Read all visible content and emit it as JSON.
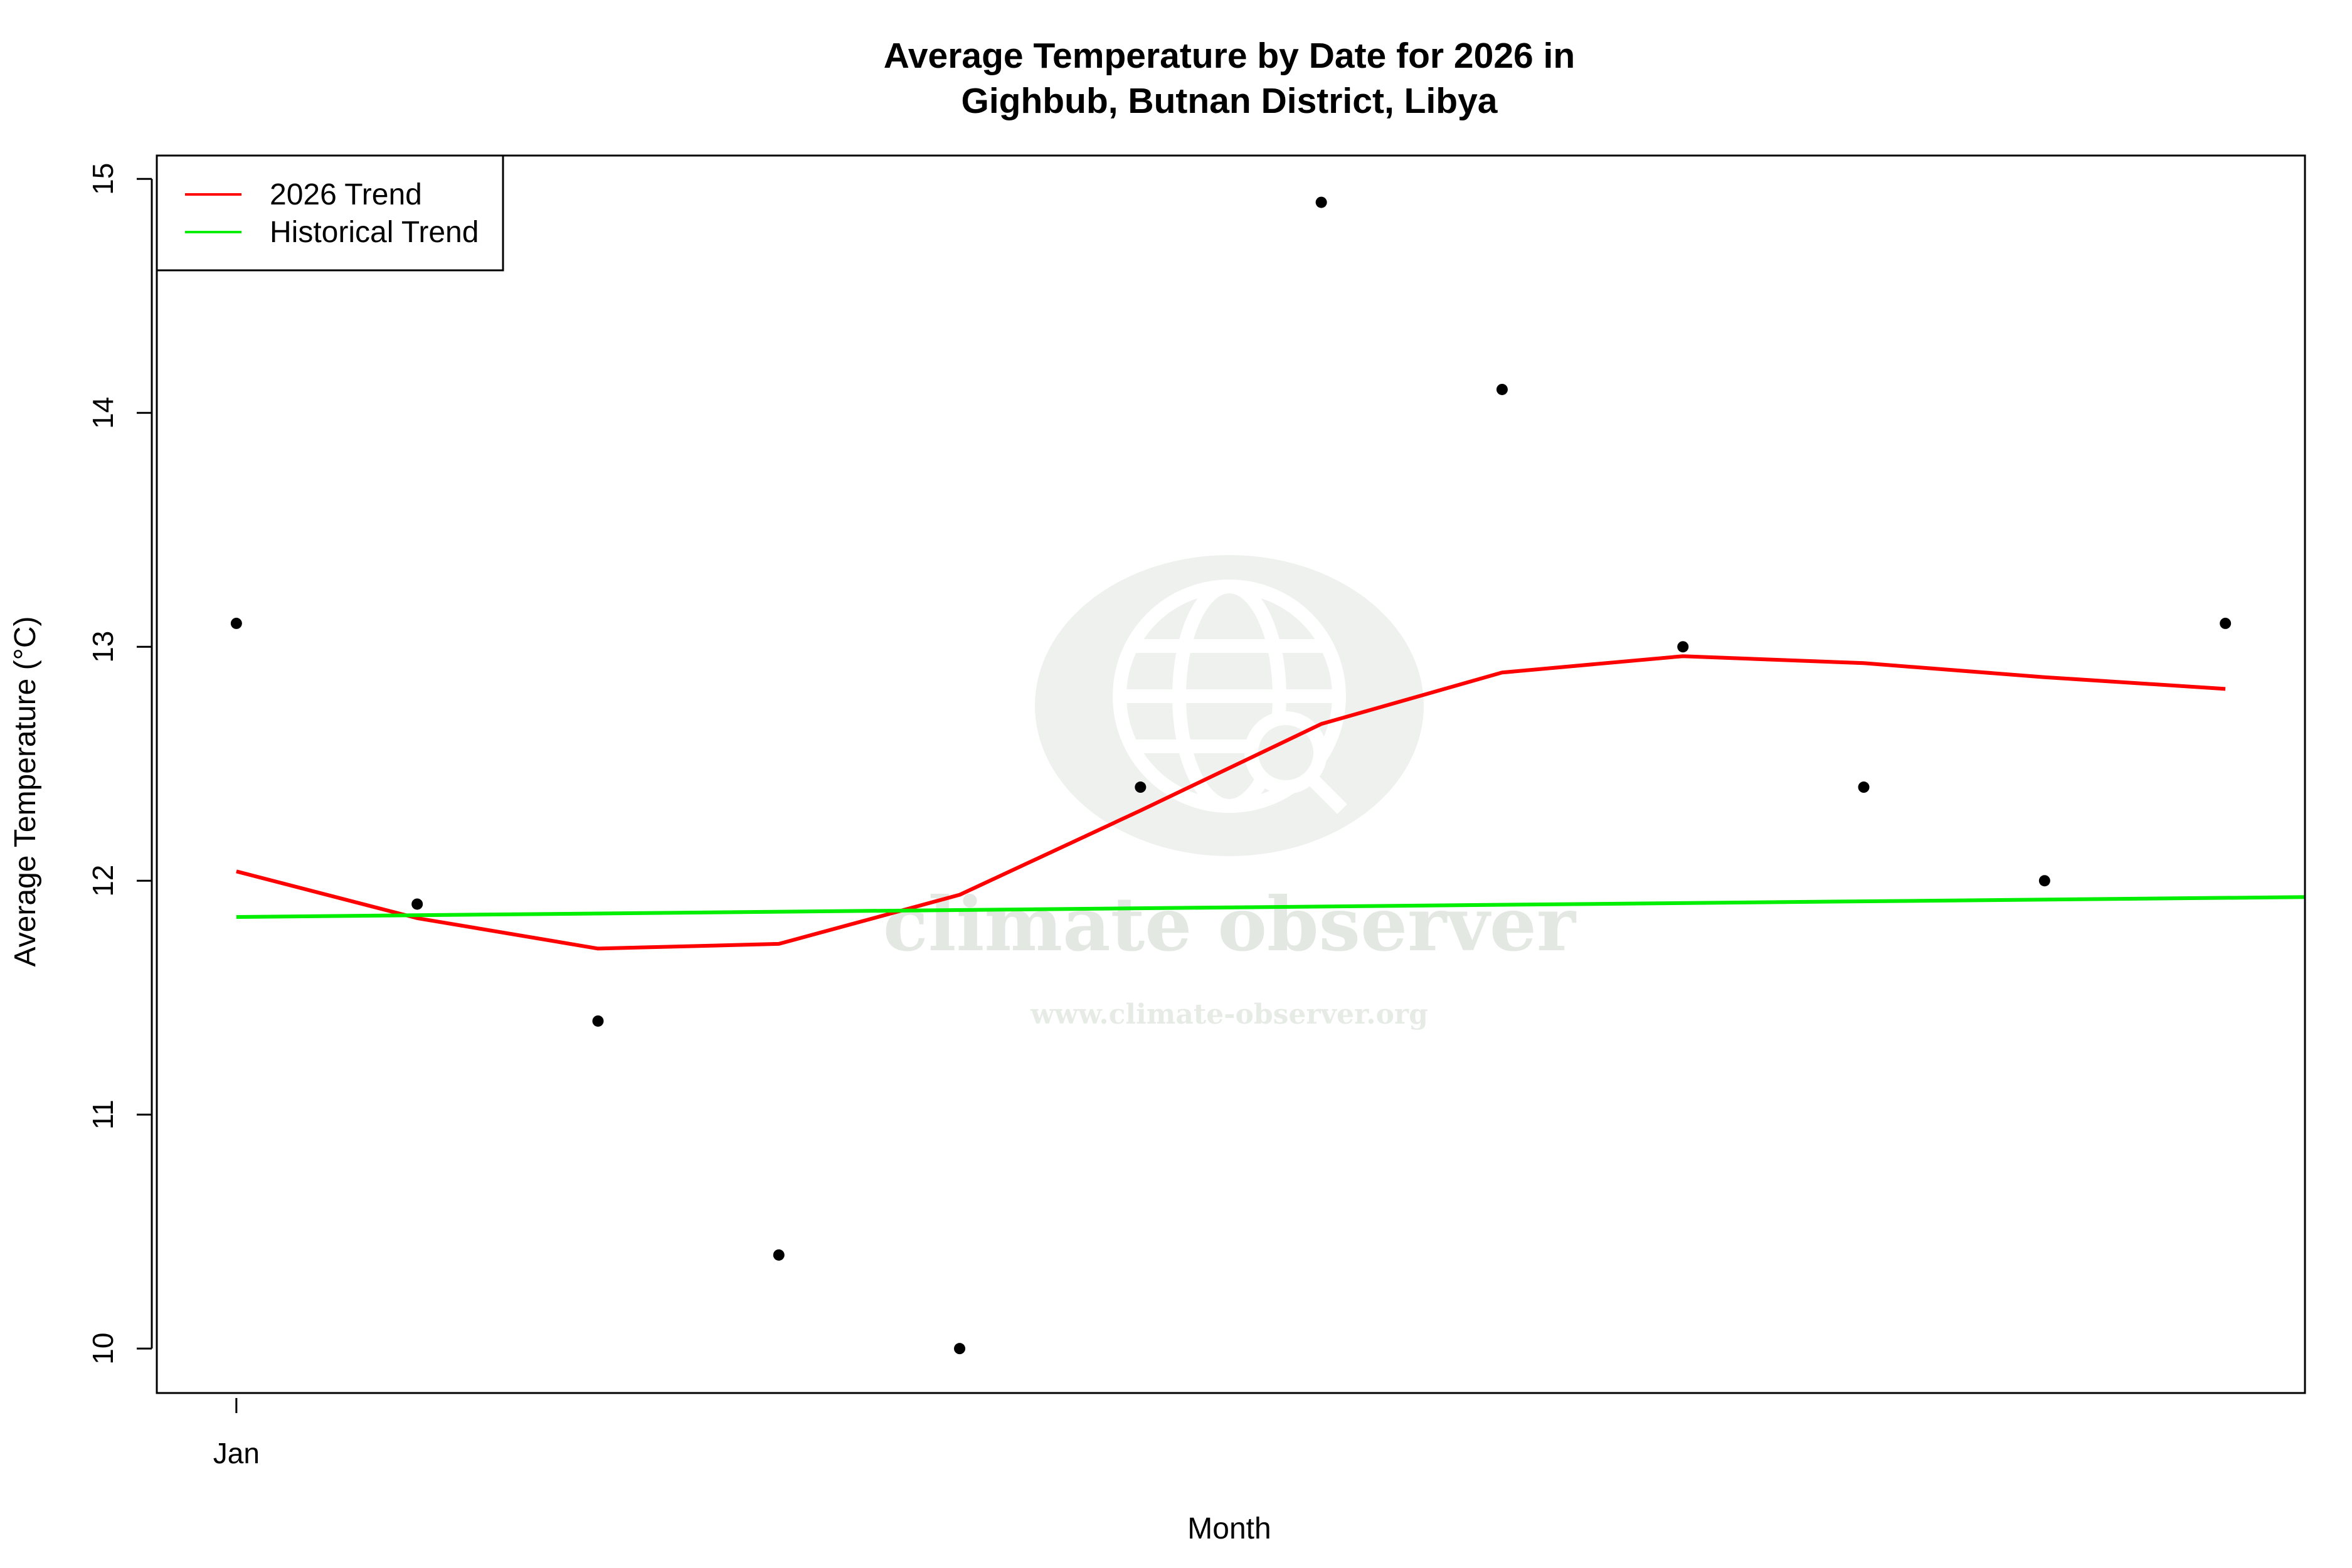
{
  "chart_data": {
    "type": "scatter",
    "title": "Average Temperature by Date for 2026 in",
    "subtitle": "Gighbub, Butnan District, Libya",
    "xlabel": "Month",
    "ylabel": "Average Temperature (°C)",
    "x_tick_labels": [
      "Jan"
    ],
    "y_ticks": [
      10,
      11,
      12,
      13,
      14,
      15
    ],
    "ylim": [
      9.81,
      15.1
    ],
    "xlim": [
      0.56,
      12.44
    ],
    "grid": false,
    "legend_position": "top-left",
    "points": {
      "x": [
        1,
        2,
        3,
        4,
        5,
        6,
        7,
        8,
        9,
        10,
        11,
        12
      ],
      "y": [
        13.1,
        11.9,
        11.4,
        10.4,
        10.0,
        12.4,
        14.9,
        14.1,
        13.0,
        12.4,
        12.0,
        13.1
      ],
      "color": "#000000"
    },
    "series": [
      {
        "name": "2026 Trend",
        "color": "#ff0000",
        "x": [
          1,
          2,
          3,
          4,
          5,
          6,
          7,
          8,
          9,
          10,
          11,
          12
        ],
        "y": [
          12.04,
          11.84,
          11.71,
          11.73,
          11.94,
          12.3,
          12.67,
          12.89,
          12.96,
          12.93,
          12.87,
          12.82
        ]
      },
      {
        "name": "Historical Trend",
        "color": "#00ee00",
        "x": [
          1,
          12.44
        ],
        "y": [
          11.845,
          11.93
        ]
      }
    ]
  },
  "watermark": {
    "brand": "climate observer",
    "url": "www.climate-observer.org",
    "icon": "globe-search-icon"
  }
}
